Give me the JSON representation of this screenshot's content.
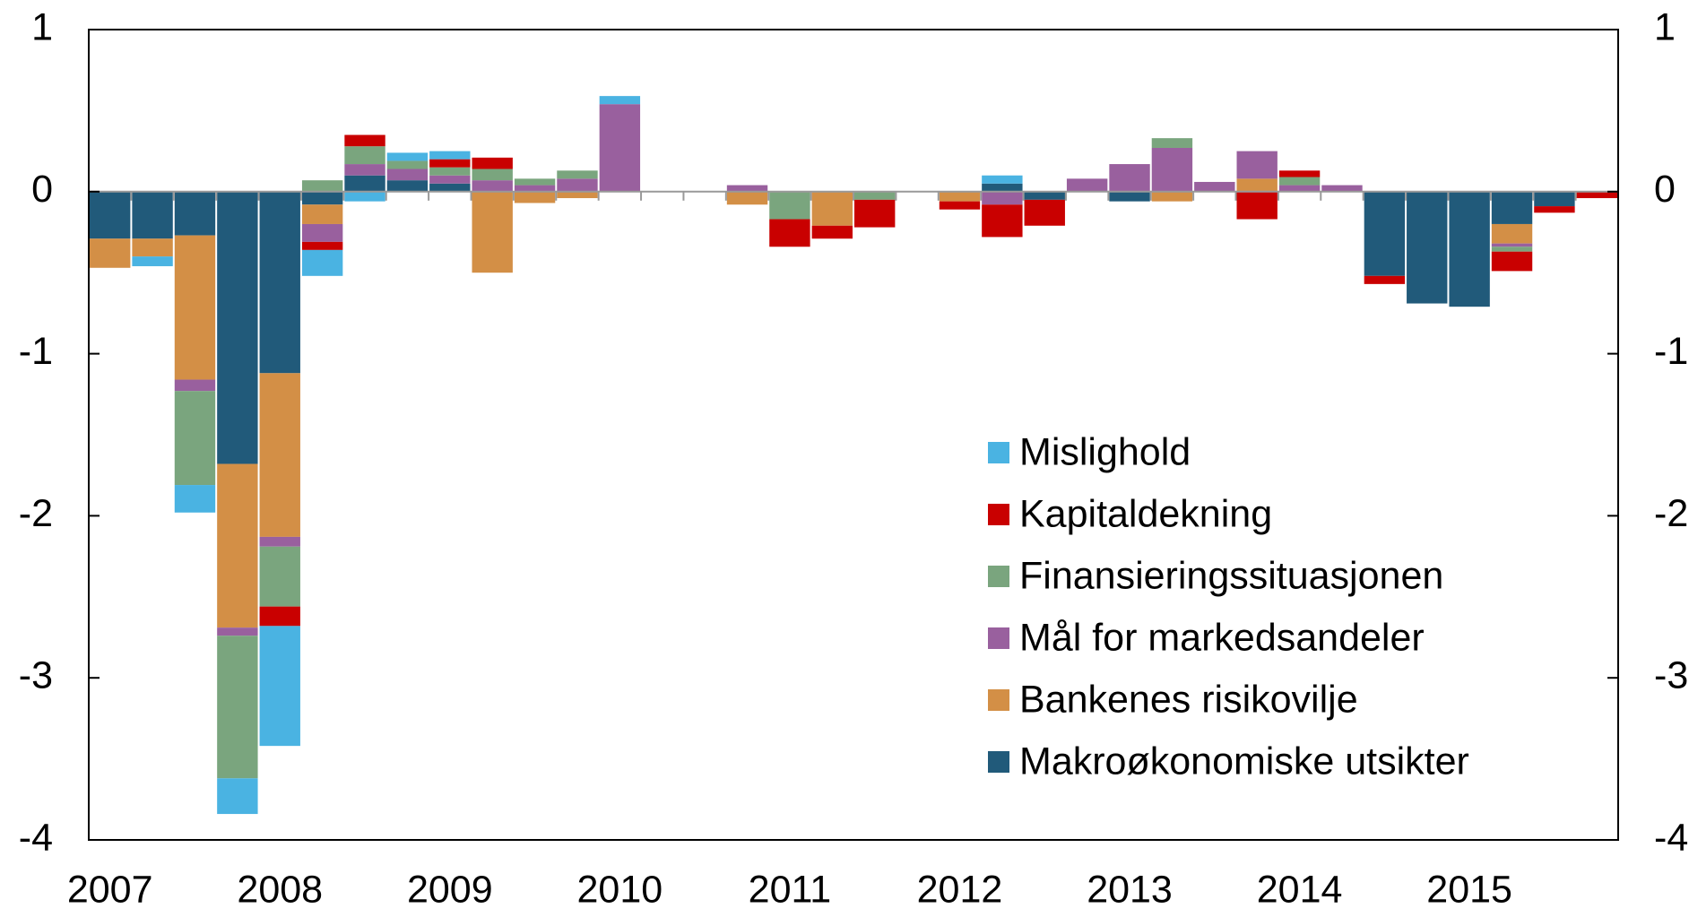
{
  "chart_data": {
    "type": "stacked_bar",
    "categories": [
      "2007",
      null,
      null,
      null,
      "2008",
      null,
      null,
      null,
      "2009",
      null,
      null,
      null,
      "2010",
      null,
      null,
      null,
      "2011",
      null,
      null,
      null,
      "2012",
      null,
      null,
      null,
      "2013",
      null,
      null,
      null,
      "2014",
      null,
      null,
      null,
      "2015",
      null,
      null,
      null
    ],
    "series": [
      {
        "name": "Makroøkonomiske utsikter",
        "color": "#215a7a",
        "values": [
          -0.29,
          -0.29,
          -0.27,
          -1.68,
          -1.12,
          -0.08,
          0.1,
          0.07,
          0.05,
          0,
          0,
          0,
          0,
          0,
          0,
          0,
          0,
          0,
          0,
          0,
          0,
          0.05,
          -0.05,
          0,
          -0.06,
          0,
          0,
          0,
          0,
          0,
          -0.52,
          -0.69,
          -0.71,
          -0.2,
          -0.09,
          0
        ]
      },
      {
        "name": "Bankenes risikovilje",
        "color": "#d38f46",
        "values": [
          -0.18,
          -0.11,
          -0.89,
          -1.01,
          -1.01,
          -0.12,
          0,
          0,
          0,
          -0.5,
          -0.07,
          -0.04,
          0,
          0,
          0,
          -0.08,
          0,
          -0.21,
          0,
          0,
          -0.06,
          0,
          0,
          0,
          0,
          -0.06,
          0,
          0.08,
          0,
          0,
          0,
          0,
          0,
          -0.12,
          0,
          0
        ]
      },
      {
        "name": "Mål for markedsandeler",
        "color": "#99609e",
        "values": [
          0,
          0,
          -0.07,
          -0.05,
          -0.06,
          -0.11,
          0.07,
          0.07,
          0.05,
          0.07,
          0.04,
          0.08,
          0.54,
          0,
          0,
          0.04,
          0,
          0,
          0,
          0,
          0,
          -0.08,
          0,
          0.08,
          0.17,
          0.27,
          0.06,
          0.17,
          0.04,
          0.04,
          0,
          0,
          0,
          -0.02,
          0,
          0
        ]
      },
      {
        "name": "Finansieringssituasjonen",
        "color": "#7aa57e",
        "values": [
          0,
          0,
          -0.58,
          -0.88,
          -0.37,
          0.07,
          0.11,
          0.05,
          0.05,
          0.07,
          0.04,
          0.05,
          0,
          0,
          0,
          0,
          -0.17,
          0,
          -0.05,
          0,
          0,
          0,
          0,
          0,
          0,
          0.06,
          0,
          0,
          0.05,
          0,
          0,
          0,
          0,
          -0.03,
          0,
          0
        ]
      },
      {
        "name": "Kapitaldekning",
        "color": "#c90000",
        "values": [
          0,
          0,
          0,
          0,
          -0.12,
          -0.05,
          0.07,
          0,
          0.05,
          0.07,
          0,
          0,
          0,
          0,
          0,
          0,
          -0.17,
          -0.08,
          -0.17,
          0,
          -0.05,
          -0.2,
          -0.16,
          0,
          0,
          0,
          0,
          -0.17,
          0.04,
          0,
          -0.05,
          0,
          0,
          -0.12,
          -0.04,
          -0.04
        ]
      },
      {
        "name": "Mislighold",
        "color": "#4ab3e2",
        "values": [
          0,
          -0.06,
          -0.17,
          -0.22,
          -0.74,
          -0.16,
          -0.06,
          0.05,
          0.05,
          0,
          0,
          0,
          0.05,
          0,
          0,
          0,
          0,
          0,
          0,
          0,
          0,
          0.05,
          0,
          0,
          0,
          0,
          0,
          0,
          0,
          0,
          0,
          0,
          0,
          0,
          0,
          0
        ]
      }
    ],
    "ylim": [
      -4,
      1
    ],
    "yticks": [
      1,
      0,
      -1,
      -2,
      -3,
      -4
    ],
    "y2lim": [
      -4,
      1
    ],
    "y2ticks": [
      1,
      0,
      -1,
      -2,
      -3,
      -4
    ]
  }
}
